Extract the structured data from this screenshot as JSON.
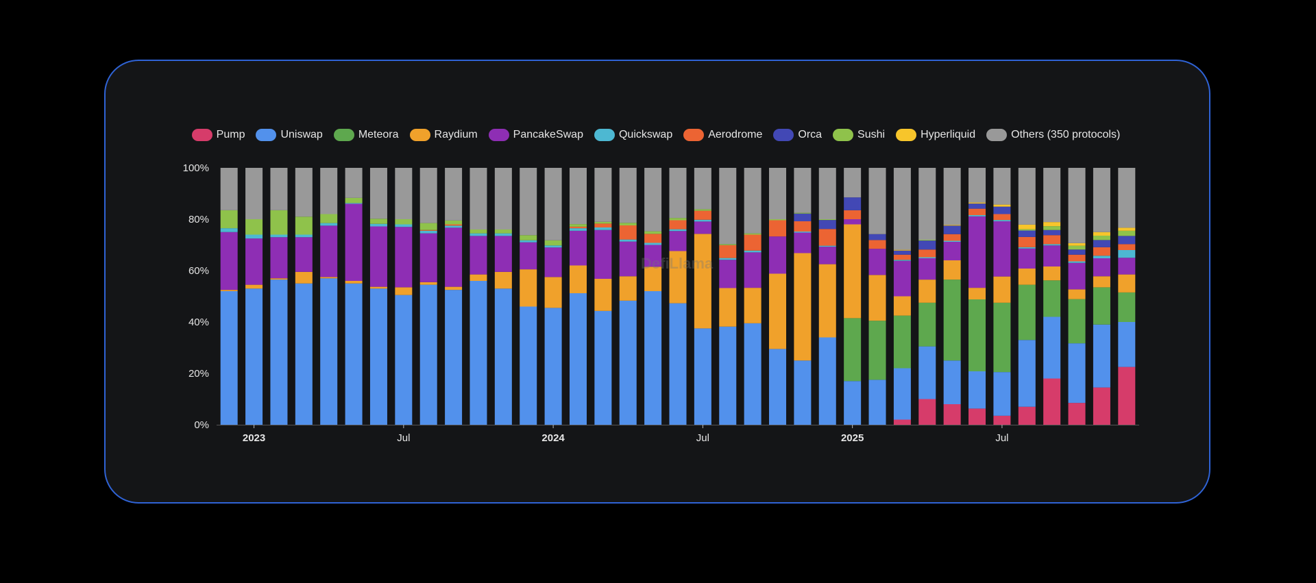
{
  "watermark": "DefiLlama",
  "chart_data": {
    "type": "bar",
    "stacked": true,
    "normalized": true,
    "title": "",
    "xlabel": "",
    "ylabel": "",
    "ylim": [
      0,
      100
    ],
    "y_ticks": [
      "0%",
      "20%",
      "40%",
      "60%",
      "80%",
      "100%"
    ],
    "x_ticks": [
      {
        "label": "2023",
        "category": "2023-01",
        "bold": true
      },
      {
        "label": "Jul",
        "category": "2023-07",
        "bold": false
      },
      {
        "label": "2024",
        "category": "2024-01",
        "bold": true
      },
      {
        "label": "Jul",
        "category": "2024-07",
        "bold": false
      },
      {
        "label": "2025",
        "category": "2025-01",
        "bold": true
      },
      {
        "label": "Jul",
        "category": "2025-07",
        "bold": false
      }
    ],
    "legend_position": "top",
    "grid": false,
    "categories": [
      "2022-12",
      "2023-01",
      "2023-02",
      "2023-03",
      "2023-04",
      "2023-05",
      "2023-06",
      "2023-07",
      "2023-08",
      "2023-09",
      "2023-10",
      "2023-11",
      "2023-12",
      "2024-01",
      "2024-02",
      "2024-03",
      "2024-04",
      "2024-05",
      "2024-06",
      "2024-07",
      "2024-08",
      "2024-09",
      "2024-10",
      "2024-11",
      "2024-12",
      "2025-01",
      "2025-02",
      "2025-03",
      "2025-04",
      "2025-05",
      "2025-06",
      "2025-07",
      "2025-08",
      "2025-09",
      "2025-10",
      "2025-11",
      "2025-12"
    ],
    "series": [
      {
        "name": "Pump",
        "color": "#d63c6a",
        "values": [
          0,
          0,
          0,
          0,
          0,
          0,
          0,
          0,
          0,
          0,
          0,
          0,
          0,
          0,
          0,
          0,
          0,
          0,
          0,
          0,
          0,
          0,
          0,
          0,
          0,
          0,
          0,
          2,
          10,
          8,
          6.3,
          3.5,
          7,
          18,
          8.5,
          14.5,
          22.5
        ]
      },
      {
        "name": "Uniswap",
        "color": "#5291ec",
        "values": [
          52,
          53,
          56.5,
          55,
          57,
          55,
          53,
          50.5,
          54.5,
          52.5,
          56,
          53,
          46,
          45.5,
          51.2,
          44.3,
          48.3,
          52,
          47.3,
          37.5,
          38.2,
          39.5,
          29.5,
          25,
          34,
          17,
          17.5,
          20,
          20.5,
          17,
          14.5,
          17,
          26,
          24,
          23.2,
          24.5,
          17.5
        ]
      },
      {
        "name": "Meteora",
        "color": "#5ea84e",
        "values": [
          0,
          0,
          0,
          0,
          0,
          0,
          0,
          0,
          0,
          0,
          0,
          0,
          0,
          0,
          0,
          0,
          0,
          0,
          0,
          0,
          0,
          0,
          0,
          0,
          0,
          24.5,
          23,
          20.5,
          17,
          31.5,
          28,
          27,
          21.5,
          14.2,
          17.2,
          14.5,
          11.5
        ]
      },
      {
        "name": "Raydium",
        "color": "#f0a12b",
        "values": [
          0.5,
          1.5,
          0.5,
          4.5,
          0.5,
          1,
          0.7,
          3,
          1,
          1.2,
          2.5,
          6.5,
          14.5,
          12,
          10.8,
          12.5,
          9.5,
          9.5,
          20.3,
          36.8,
          15,
          13.8,
          29.3,
          41.8,
          28.5,
          36.5,
          17.8,
          7.5,
          9,
          7.5,
          4.5,
          10.2,
          6.3,
          5.4,
          3.8,
          4.3,
          7
        ]
      },
      {
        "name": "PancakeSwap",
        "color": "#8e2eb4",
        "values": [
          22.5,
          18,
          16,
          13.5,
          20,
          30,
          23.5,
          23.5,
          19,
          23,
          15,
          14,
          10.5,
          11.5,
          13.5,
          19,
          13.5,
          8.5,
          7.8,
          4.8,
          11,
          13.8,
          14.5,
          8,
          6.8,
          2,
          10.2,
          13.8,
          8.3,
          7.2,
          27.8,
          21.5,
          7.8,
          8.2,
          10.3,
          7,
          6.5
        ]
      },
      {
        "name": "Quickswap",
        "color": "#4db8d2",
        "values": [
          1.5,
          1.5,
          1,
          1,
          1,
          0.3,
          1,
          1,
          1,
          0.8,
          1,
          1,
          0.8,
          0.8,
          1,
          1,
          0.8,
          0.8,
          0.7,
          0.7,
          0.7,
          0.7,
          0,
          0.4,
          0.4,
          0,
          0,
          0.4,
          0.4,
          0.4,
          0.5,
          0.5,
          0.5,
          0.5,
          0.6,
          1,
          3
        ]
      },
      {
        "name": "Aerodrome",
        "color": "#ec6433",
        "values": [
          0,
          0,
          0,
          0,
          0,
          0,
          0,
          0,
          0.3,
          0.5,
          0,
          0,
          0,
          0,
          0.6,
          1.5,
          5.5,
          3.5,
          3.5,
          3.5,
          5,
          6.2,
          6.3,
          4,
          6.5,
          3.5,
          3.4,
          2,
          3,
          2.6,
          2.5,
          2.3,
          4,
          3.5,
          2.6,
          3.3,
          2.3
        ]
      },
      {
        "name": "Orca",
        "color": "#4248b5",
        "values": [
          0,
          0,
          0,
          0,
          0,
          0,
          0,
          0,
          0,
          0,
          0,
          0,
          0,
          0,
          0,
          0,
          0,
          0,
          0,
          0,
          0,
          0,
          0,
          3,
          3.5,
          5,
          2.3,
          1.6,
          3.5,
          3.3,
          2,
          2.9,
          2.5,
          2,
          2,
          2.8,
          3.2
        ]
      },
      {
        "name": "Sushi",
        "color": "#8fc24b",
        "values": [
          7,
          6,
          9.5,
          7,
          3.5,
          2,
          2,
          2,
          2.7,
          1.5,
          1.5,
          1.5,
          2,
          2,
          1,
          0.7,
          1,
          1,
          0.9,
          0.6,
          0.4,
          0.5,
          0.4,
          0.3,
          0.3,
          0,
          0,
          0,
          0.3,
          0,
          0,
          0,
          0.5,
          1.5,
          1.5,
          1.7,
          2
        ]
      },
      {
        "name": "Hyperliquid",
        "color": "#f7c52b",
        "values": [
          0,
          0,
          0,
          0,
          0,
          0,
          0,
          0,
          0,
          0,
          0,
          0,
          0,
          0,
          0,
          0,
          0,
          0,
          0,
          0,
          0,
          0,
          0,
          0,
          0,
          0,
          0,
          0.3,
          0,
          0.3,
          0.4,
          0.8,
          1.8,
          1.6,
          1,
          1.4,
          1.2
        ]
      },
      {
        "name": "Others (350 protocols)",
        "color": "#999999",
        "values": [
          16.5,
          20,
          16.5,
          19,
          18,
          11.7,
          19.8,
          20,
          21.5,
          20.5,
          24,
          24,
          26.2,
          28.2,
          21.9,
          21,
          21.4,
          24.7,
          19.5,
          16.1,
          29.7,
          25.5,
          20,
          17.5,
          20,
          11.5,
          25.8,
          31.9,
          28,
          22.2,
          13.5,
          14.3,
          22.1,
          21.1,
          29.3,
          25,
          23.3
        ]
      }
    ]
  }
}
